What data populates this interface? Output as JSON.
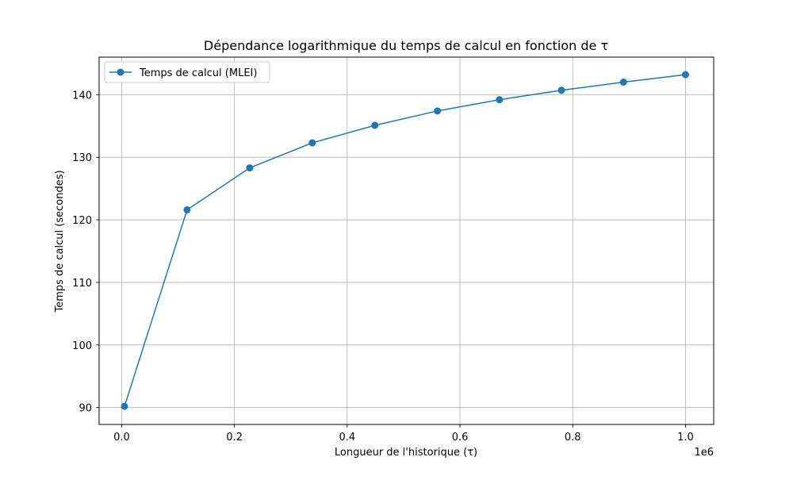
{
  "chart_data": {
    "type": "line",
    "title": "Dépendance logarithmique du temps de calcul en fonction de τ",
    "xlabel": "Longueur de l'historique (τ)",
    "ylabel": "Temps de calcul (secondes)",
    "x_offset_label": "1e6",
    "xlim": [
      -0.04,
      1.05
    ],
    "ylim": [
      87.3,
      146.0
    ],
    "x_ticks": [
      0.0,
      0.2,
      0.4,
      0.6,
      0.8,
      1.0
    ],
    "x_tick_labels": [
      "0.0",
      "0.2",
      "0.4",
      "0.6",
      "0.8",
      "1.0"
    ],
    "y_ticks": [
      90,
      100,
      110,
      120,
      130,
      140
    ],
    "y_tick_labels": [
      "90",
      "100",
      "110",
      "120",
      "130",
      "140"
    ],
    "grid": true,
    "legend_position": "top-left",
    "series": [
      {
        "name": "Temps de calcul (MLEI)",
        "color": "#1f77b4",
        "marker": "circle",
        "x": [
          0.005,
          0.116,
          0.227,
          0.338,
          0.449,
          0.56,
          0.67,
          0.78,
          0.89,
          1.0
        ],
        "y": [
          90.2,
          121.6,
          128.3,
          132.3,
          135.1,
          137.4,
          139.2,
          140.7,
          142.0,
          143.2
        ]
      }
    ]
  }
}
